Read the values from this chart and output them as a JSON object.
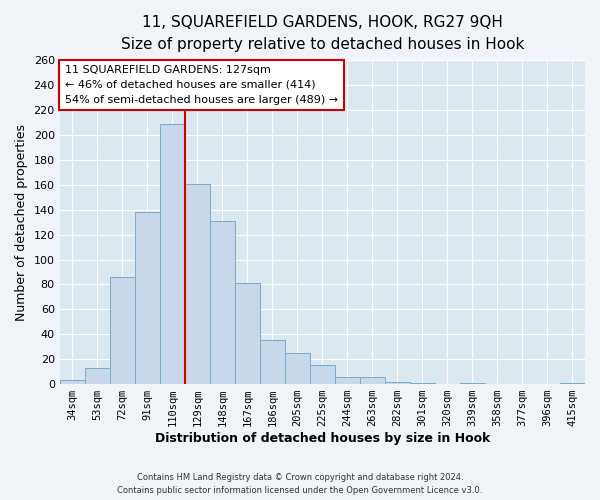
{
  "title_line1": "11, SQUAREFIELD GARDENS, HOOK, RG27 9QH",
  "title_line2": "Size of property relative to detached houses in Hook",
  "xlabel": "Distribution of detached houses by size in Hook",
  "ylabel": "Number of detached properties",
  "bar_labels": [
    "34sqm",
    "53sqm",
    "72sqm",
    "91sqm",
    "110sqm",
    "129sqm",
    "148sqm",
    "167sqm",
    "186sqm",
    "205sqm",
    "225sqm",
    "244sqm",
    "263sqm",
    "282sqm",
    "301sqm",
    "320sqm",
    "339sqm",
    "358sqm",
    "377sqm",
    "396sqm",
    "415sqm"
  ],
  "bar_heights": [
    3,
    13,
    86,
    138,
    209,
    161,
    131,
    81,
    35,
    25,
    15,
    6,
    6,
    2,
    1,
    0,
    1,
    0,
    0,
    0,
    1
  ],
  "bar_color": "#c8d8e8",
  "bar_edge_color": "#7aaccc",
  "vline_color": "#cc0000",
  "vline_bin_index": 4,
  "annotation_title": "11 SQUAREFIELD GARDENS: 127sqm",
  "annotation_line1": "← 46% of detached houses are smaller (414)",
  "annotation_line2": "54% of semi-detached houses are larger (489) →",
  "annotation_box_facecolor": "#ffffff",
  "annotation_box_edgecolor": "#cc0000",
  "ylim": [
    0,
    260
  ],
  "yticks": [
    0,
    20,
    40,
    60,
    80,
    100,
    120,
    140,
    160,
    180,
    200,
    220,
    240,
    260
  ],
  "footer_line1": "Contains HM Land Registry data © Crown copyright and database right 2024.",
  "footer_line2": "Contains public sector information licensed under the Open Government Licence v3.0.",
  "fig_facecolor": "#f0f4f8",
  "plot_facecolor": "#dce8f0",
  "grid_color": "#ffffff",
  "title1_fontsize": 11,
  "title2_fontsize": 9,
  "xlabel_fontsize": 9,
  "ylabel_fontsize": 9,
  "tick_fontsize": 8,
  "annot_fontsize": 8
}
